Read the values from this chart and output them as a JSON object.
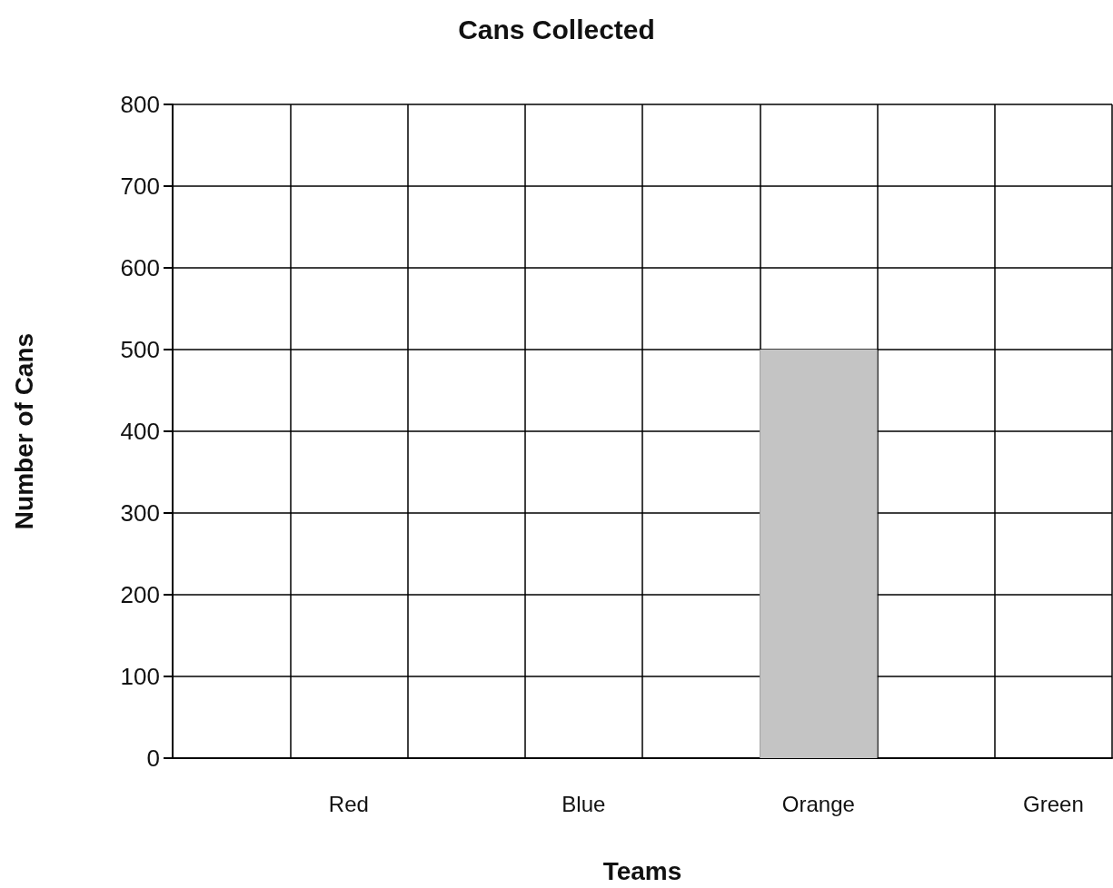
{
  "chart_data": {
    "type": "bar",
    "title": "Cans Collected",
    "xlabel": "Teams",
    "ylabel": "Number of Cans",
    "categories": [
      null,
      "Red",
      null,
      "Blue",
      null,
      "Orange",
      null,
      "Green"
    ],
    "values": [
      null,
      null,
      null,
      null,
      null,
      500,
      null,
      null
    ],
    "color": "#c4c4c4",
    "ylim": [
      0,
      800
    ],
    "yticks": [
      0,
      100,
      200,
      300,
      400,
      500,
      600,
      700,
      800
    ],
    "grid": true
  }
}
